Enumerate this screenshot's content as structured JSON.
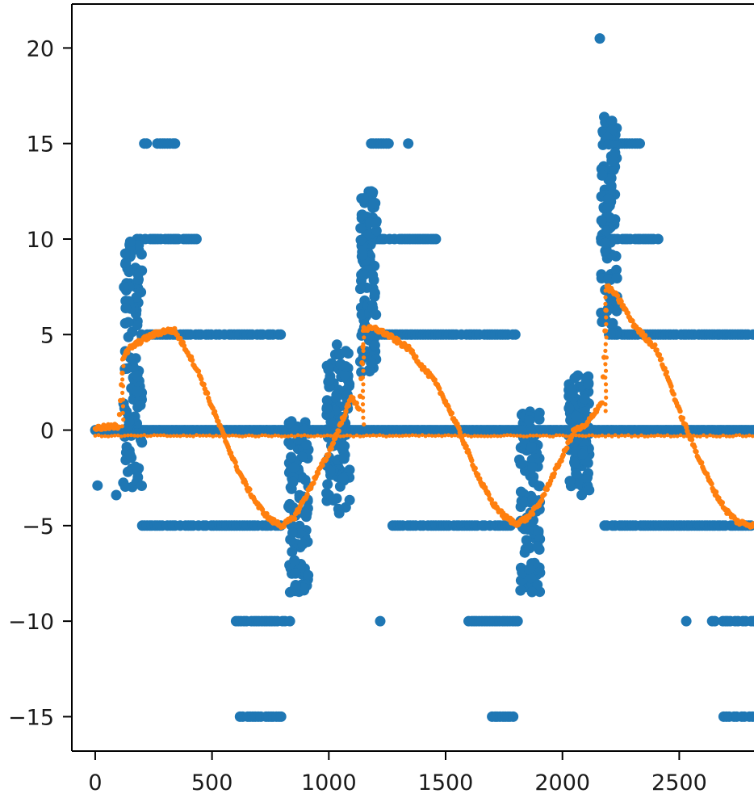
{
  "chart_data": {
    "type": "scatter",
    "title": "",
    "xlabel": "",
    "ylabel": "",
    "xlim": [
      -100,
      2820
    ],
    "ylim": [
      -16.8,
      22.3
    ],
    "x_ticks": [
      0,
      500,
      1000,
      1500,
      2000,
      2500
    ],
    "x_tick_labels": [
      "0",
      "500",
      "1000",
      "1500",
      "2000",
      "2500"
    ],
    "y_ticks": [
      20,
      15,
      10,
      5,
      0,
      -5,
      -10,
      -15
    ],
    "y_tick_labels": [
      "20",
      "15",
      "10",
      "5",
      "0",
      "−5",
      "−10",
      "−15"
    ],
    "grid": false,
    "legend": "none",
    "series": [
      {
        "kind": "points",
        "color": "#1f77b4",
        "description_visible": "large scattered blue markers at discrete levels",
        "levels": [
          {
            "y": 0,
            "x_range": [
              0,
              2820
            ]
          },
          {
            "y": 5,
            "x_range": [
              200,
              800
            ]
          },
          {
            "y": 5,
            "x_range": [
              1150,
              1800
            ]
          },
          {
            "y": 5,
            "x_range": [
              2200,
              2820
            ]
          },
          {
            "y": 10,
            "x_range": [
              180,
              440
            ]
          },
          {
            "y": 10,
            "x_range": [
              1150,
              1460
            ]
          },
          {
            "y": 10,
            "x_range": [
              2180,
              2430
            ]
          },
          {
            "y": 15,
            "x_range": [
              200,
              360
            ]
          },
          {
            "y": 15,
            "x_range": [
              1180,
              1260
            ]
          },
          {
            "y": 15,
            "x_range": [
              2200,
              2340
            ]
          },
          {
            "y": -5,
            "x_range": [
              200,
              800
            ]
          },
          {
            "y": -5,
            "x_range": [
              1250,
              1780
            ]
          },
          {
            "y": -5,
            "x_range": [
              2180,
              2820
            ]
          },
          {
            "y": -10,
            "x_range": [
              570,
              840
            ]
          },
          {
            "y": -10,
            "x_range": [
              1600,
              1830
            ]
          },
          {
            "y": -10,
            "x_range": [
              2620,
              2820
            ]
          },
          {
            "y": -15,
            "x_range": [
              620,
              800
            ]
          },
          {
            "y": -15,
            "x_range": [
              1700,
              1790
            ]
          },
          {
            "y": -15,
            "x_range": [
              2680,
              2820
            ]
          }
        ],
        "clusters": [
          {
            "x_center": 160,
            "x_spread": 80,
            "y_min": -3,
            "y_max": 11
          },
          {
            "x_center": 870,
            "x_spread": 90,
            "y_min": -8.5,
            "y_max": 0.5
          },
          {
            "x_center": 1040,
            "x_spread": 100,
            "y_min": -4.5,
            "y_max": 4.5
          },
          {
            "x_center": 1170,
            "x_spread": 70,
            "y_min": 3,
            "y_max": 12.5
          },
          {
            "x_center": 1860,
            "x_spread": 90,
            "y_min": -8.5,
            "y_max": 1
          },
          {
            "x_center": 2070,
            "x_spread": 90,
            "y_min": -3.5,
            "y_max": 3
          },
          {
            "x_center": 2200,
            "x_spread": 70,
            "y_min": 5,
            "y_max": 16.5
          }
        ],
        "outliers": [
          {
            "x": 2160,
            "y": 20.5
          },
          {
            "x": 10,
            "y": -2.9
          },
          {
            "x": 90,
            "y": -3.4
          },
          {
            "x": 1220,
            "y": -10
          },
          {
            "x": 1340,
            "y": 15
          },
          {
            "x": 2530,
            "y": -10
          }
        ]
      },
      {
        "kind": "line-points",
        "color": "#ff7f0e",
        "description_visible": "small orange markers tracing a smooth periodic curve plus a near-zero baseline",
        "baseline_y": -0.3,
        "curve": [
          [
            0,
            0.1
          ],
          [
            100,
            0.2
          ],
          [
            120,
            3.8
          ],
          [
            150,
            4.3
          ],
          [
            200,
            4.7
          ],
          [
            250,
            5.0
          ],
          [
            300,
            5.2
          ],
          [
            340,
            5.2
          ],
          [
            400,
            4.0
          ],
          [
            450,
            2.8
          ],
          [
            500,
            1.2
          ],
          [
            550,
            -0.3
          ],
          [
            600,
            -1.8
          ],
          [
            650,
            -3.0
          ],
          [
            700,
            -4.0
          ],
          [
            750,
            -4.7
          ],
          [
            800,
            -5.0
          ],
          [
            850,
            -4.6
          ],
          [
            900,
            -3.5
          ],
          [
            950,
            -2.3
          ],
          [
            1000,
            -1.2
          ],
          [
            1050,
            0.3
          ],
          [
            1100,
            1.8
          ],
          [
            1130,
            1.0
          ],
          [
            1150,
            5.3
          ],
          [
            1200,
            5.3
          ],
          [
            1250,
            5.0
          ],
          [
            1300,
            4.6
          ],
          [
            1350,
            4.2
          ],
          [
            1400,
            3.3
          ],
          [
            1450,
            2.6
          ],
          [
            1500,
            1.5
          ],
          [
            1550,
            0.2
          ],
          [
            1600,
            -1.3
          ],
          [
            1650,
            -2.7
          ],
          [
            1700,
            -3.8
          ],
          [
            1750,
            -4.5
          ],
          [
            1800,
            -4.9
          ],
          [
            1850,
            -4.6
          ],
          [
            1900,
            -3.9
          ],
          [
            1950,
            -2.6
          ],
          [
            2000,
            -1.4
          ],
          [
            2050,
            0.0
          ],
          [
            2100,
            0.2
          ],
          [
            2130,
            0.8
          ],
          [
            2170,
            1.5
          ],
          [
            2190,
            7.5
          ],
          [
            2220,
            7.2
          ],
          [
            2260,
            6.5
          ],
          [
            2300,
            5.6
          ],
          [
            2350,
            4.9
          ],
          [
            2400,
            4.3
          ],
          [
            2450,
            2.8
          ],
          [
            2500,
            1.0
          ],
          [
            2550,
            -0.5
          ],
          [
            2600,
            -1.9
          ],
          [
            2650,
            -3.2
          ],
          [
            2700,
            -4.2
          ],
          [
            2750,
            -4.8
          ],
          [
            2820,
            -5.0
          ]
        ]
      }
    ]
  }
}
